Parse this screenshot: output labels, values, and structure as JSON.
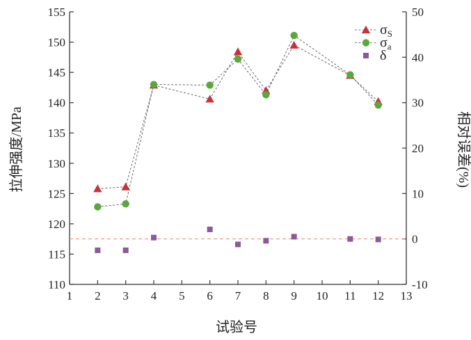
{
  "chart_data": {
    "type": "scatter",
    "xlabel": "试验号",
    "ylabel_left": "拉伸强度/MPa",
    "ylabel_right": "相对误差(%)",
    "x_range": [
      1,
      13
    ],
    "x_ticks": [
      1,
      2,
      3,
      4,
      5,
      6,
      7,
      8,
      9,
      10,
      11,
      12,
      13
    ],
    "y_left_range": [
      110,
      155
    ],
    "y_left_ticks": [
      110,
      115,
      120,
      125,
      130,
      135,
      140,
      145,
      150,
      155
    ],
    "y_right_range": [
      -10,
      50
    ],
    "y_right_ticks": [
      -10,
      0,
      10,
      20,
      30,
      40,
      50
    ],
    "reference_line_right": 0,
    "series": [
      {
        "name": "σS",
        "axis": "left",
        "marker": "triangle",
        "color": "#c8323a",
        "connected": true,
        "x": [
          2,
          3,
          4,
          6,
          7,
          8,
          9,
          11,
          12
        ],
        "y": [
          125.8,
          126.1,
          142.9,
          140.6,
          148.4,
          142.0,
          149.5,
          144.5,
          140.2
        ]
      },
      {
        "name": "σa",
        "axis": "left",
        "marker": "circle",
        "color": "#5aa83c",
        "connected": true,
        "x": [
          2,
          3,
          4,
          6,
          7,
          8,
          9,
          11,
          12
        ],
        "y": [
          122.8,
          123.3,
          143.0,
          142.9,
          147.2,
          141.3,
          151.1,
          144.6,
          139.6
        ]
      },
      {
        "name": "δ",
        "axis": "right",
        "marker": "square",
        "color": "#8a5a9a",
        "connected": false,
        "x": [
          2,
          3,
          4,
          6,
          7,
          8,
          9,
          11,
          12
        ],
        "y": [
          -2.5,
          -2.5,
          0.3,
          2.1,
          -1.2,
          -0.4,
          0.5,
          0.0,
          -0.1
        ]
      }
    ],
    "legend": {
      "position": "top-right",
      "entries": [
        {
          "symbol": "σ",
          "sub": "S"
        },
        {
          "symbol": "σ",
          "sub": "a"
        },
        {
          "symbol": "δ",
          "sub": ""
        }
      ]
    }
  }
}
